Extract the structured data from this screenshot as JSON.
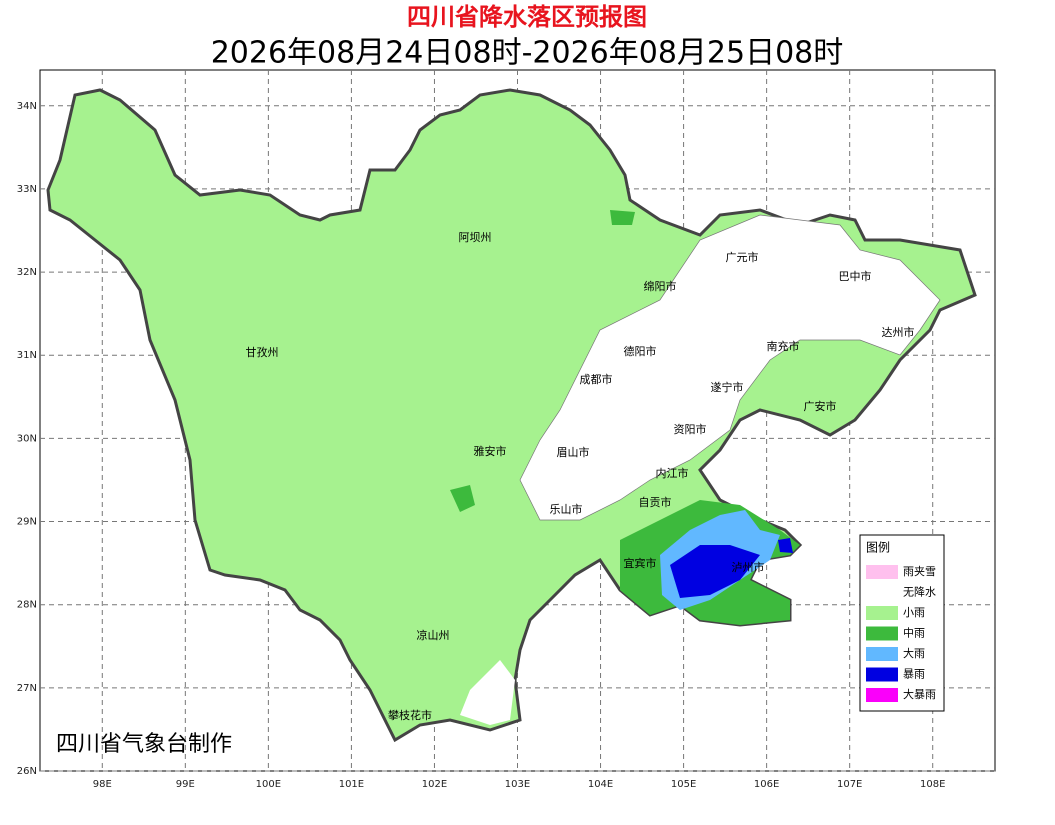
{
  "header": {
    "title": "四川省降水落区预报图",
    "subtitle": "2026年08月24日08时-2026年08月25日08时"
  },
  "map": {
    "lonlim": [
      97.25,
      108.75
    ],
    "latlim": [
      26,
      34.43
    ],
    "lonticks": [
      {
        "value": 98,
        "label": "98E"
      },
      {
        "value": 99,
        "label": "99E"
      },
      {
        "value": 100,
        "label": "100E"
      },
      {
        "value": 101,
        "label": "101E"
      },
      {
        "value": 102,
        "label": "102E"
      },
      {
        "value": 103,
        "label": "103E"
      },
      {
        "value": 104,
        "label": "104E"
      },
      {
        "value": 105,
        "label": "105E"
      },
      {
        "value": 106,
        "label": "106E"
      },
      {
        "value": 107,
        "label": "107E"
      },
      {
        "value": 108,
        "label": "108E"
      }
    ],
    "latticks": [
      {
        "value": 26,
        "label": "26N"
      },
      {
        "value": 27,
        "label": "27N"
      },
      {
        "value": 28,
        "label": "28N"
      },
      {
        "value": 29,
        "label": "29N"
      },
      {
        "value": 30,
        "label": "30N"
      },
      {
        "value": 31,
        "label": "31N"
      },
      {
        "value": 32,
        "label": "32N"
      },
      {
        "value": 33,
        "label": "33N"
      },
      {
        "value": 34,
        "label": "34N"
      }
    ],
    "cities": [
      "阿坝州",
      "广元市",
      "巴中市",
      "绵阳市",
      "达州市",
      "甘孜州",
      "德阳市",
      "南充市",
      "成都市",
      "遂宁市",
      "广安市",
      "资阳市",
      "雅安市",
      "眉山市",
      "内江市",
      "自贡市",
      "乐山市",
      "宜宾市",
      "泸州市",
      "凉山州",
      "攀枝花市"
    ],
    "credit": "四川省气象台制作"
  },
  "legend": {
    "title": "图例",
    "items": [
      {
        "name": "雨夹雪",
        "color": "#ffc0ee"
      },
      {
        "name": "无降水",
        "color": "#ffffff"
      },
      {
        "name": "小雨",
        "color": "#a6f28f"
      },
      {
        "name": "中雨",
        "color": "#3dba3d"
      },
      {
        "name": "大雨",
        "color": "#61b8ff"
      },
      {
        "name": "暴雨",
        "color": "#0000e1"
      },
      {
        "name": "大暴雨",
        "color": "#fa00fa"
      }
    ]
  }
}
